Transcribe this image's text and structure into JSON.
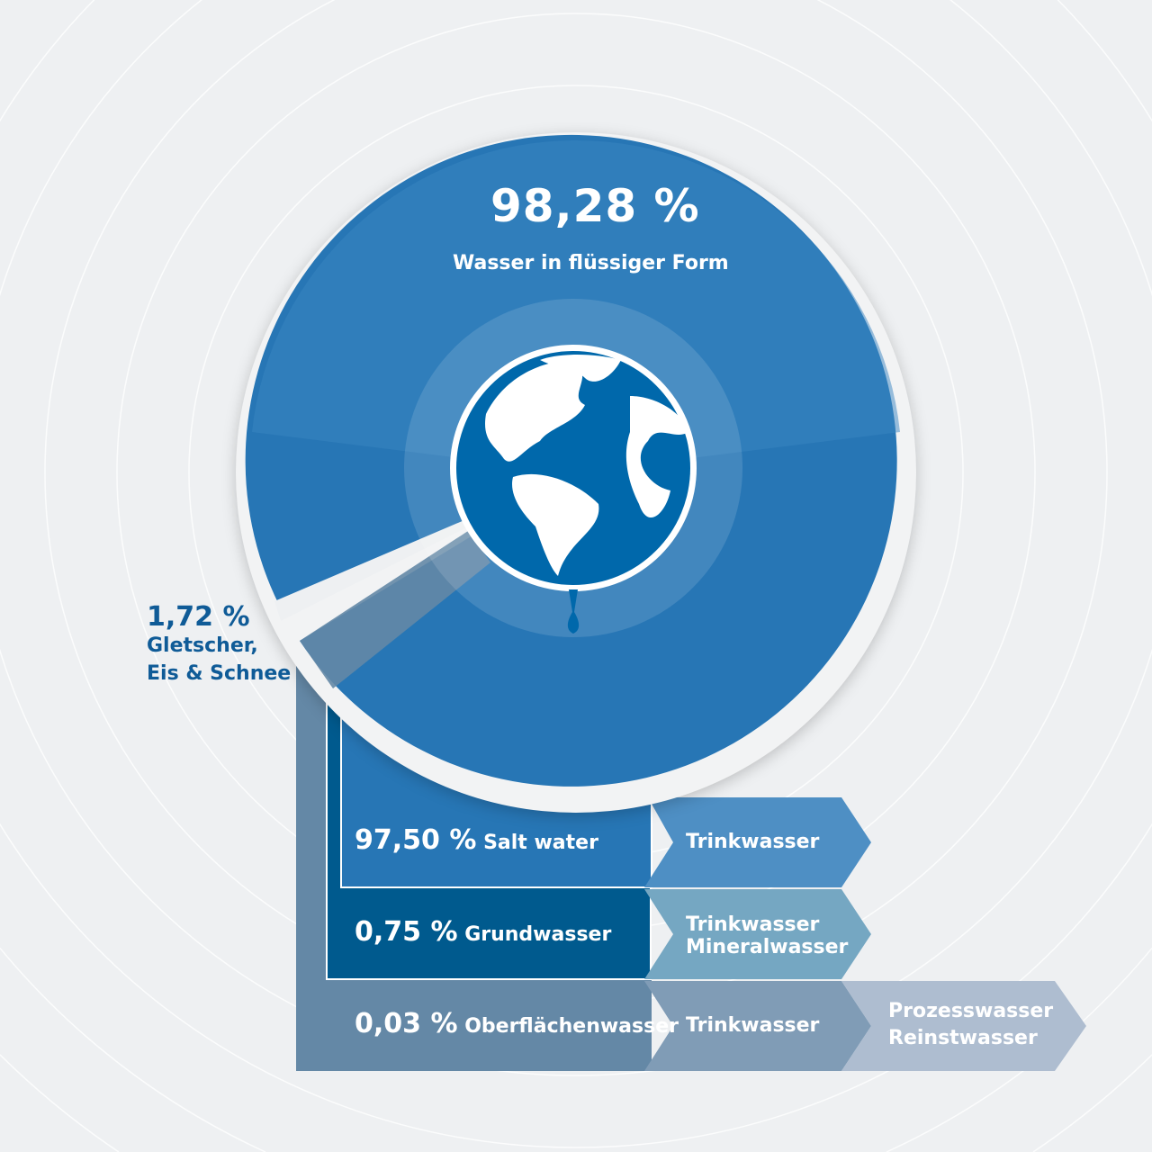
{
  "main_segment": {
    "percent": "98,28 %",
    "label": "Wasser in flüssiger Form",
    "value": 98.28
  },
  "side_segment": {
    "percent": "1,72 %",
    "label_line1": "Gletscher,",
    "label_line2": "Eis & Schnee",
    "value": 1.72
  },
  "rows": [
    {
      "percent": "97,50 %",
      "label": "Salt water",
      "uses": [
        "Trinkwasser"
      ]
    },
    {
      "percent": "0,75 %",
      "label": "Grundwasser",
      "uses": [
        "Trinkwasser",
        "Mineralwasser"
      ]
    },
    {
      "percent": "0,03 %",
      "label": "Oberflächenwasser",
      "uses": [
        "Trinkwasser"
      ],
      "extra_uses": [
        "Prozesswasser",
        "Reinstwasser"
      ]
    }
  ],
  "colors": {
    "main_blue": "#2776b5",
    "dark_blue": "#005a8e",
    "gray_blue": "#6488a6",
    "chevron_1": "#4e8fc4",
    "chevron_2": "#75a7c2",
    "chevron_3a": "#809cb6",
    "chevron_3b": "#aebdd0",
    "background": "#eef0f2"
  },
  "icons": {
    "center": "globe-water-drop-icon"
  }
}
